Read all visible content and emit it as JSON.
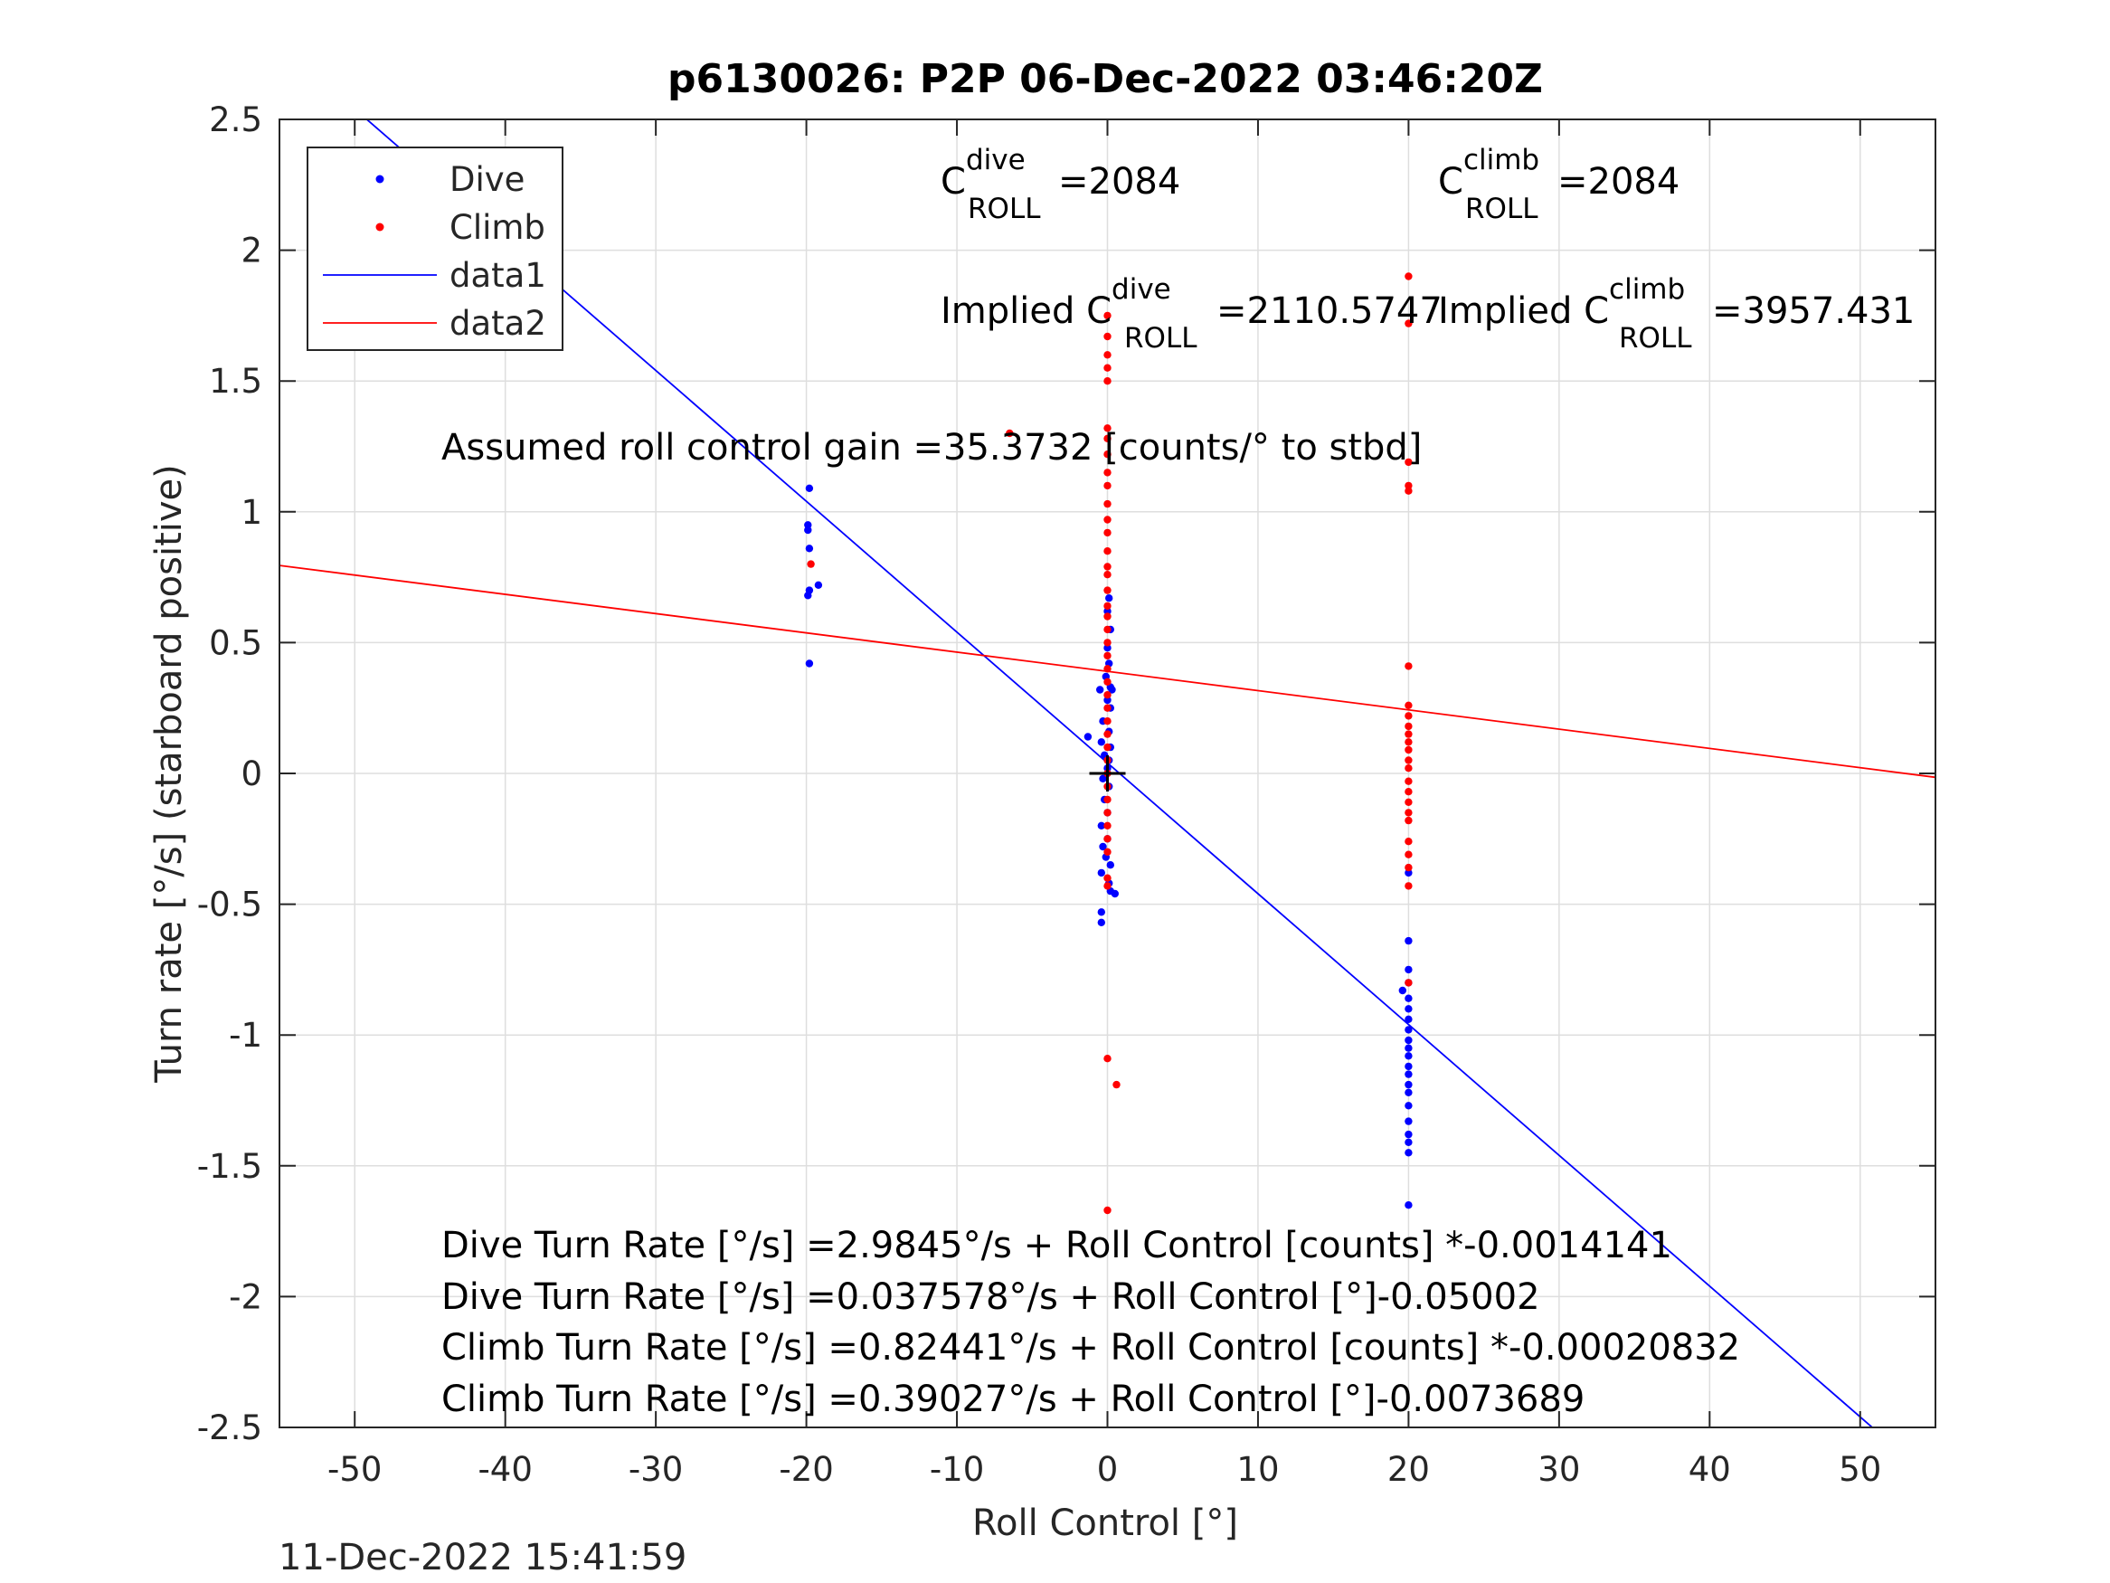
{
  "chart_data": {
    "type": "scatter",
    "title": "p6130026: P2P 06-Dec-2022 03:46:20Z",
    "xlabel": "Roll Control [°]",
    "ylabel": "Turn rate [°/s] (starboard positive)",
    "xlim": [
      -55,
      55
    ],
    "ylim": [
      -2.5,
      2.5
    ],
    "x_ticks": [
      -50,
      -40,
      -30,
      -20,
      -10,
      0,
      10,
      20,
      30,
      40,
      50
    ],
    "y_ticks": [
      2.5,
      2,
      1.5,
      1,
      0.5,
      0,
      -0.5,
      -1,
      -1.5,
      -2,
      -2.5
    ],
    "x_tick_labels": [
      "-50",
      "-40",
      "-30",
      "-20",
      "-10",
      "0",
      "10",
      "20",
      "30",
      "40",
      "50"
    ],
    "y_tick_labels": [
      "2.5",
      "2",
      "1.5",
      "1",
      "0.5",
      "0",
      "-0.5",
      "-1",
      "-1.5",
      "-2",
      "-2.5"
    ],
    "grid": true,
    "legend_position": "top-left",
    "legend": [
      {
        "name": "Dive",
        "kind": "marker",
        "color": "#0000ff"
      },
      {
        "name": "Climb",
        "kind": "marker",
        "color": "#ff0000"
      },
      {
        "name": "data1",
        "kind": "line",
        "color": "#0000ff"
      },
      {
        "name": "data2",
        "kind": "line",
        "color": "#ff0000"
      }
    ],
    "series": [
      {
        "name": "Dive",
        "kind": "scatter",
        "color": "#0000ff",
        "points": [
          [
            -19.8,
            1.09
          ],
          [
            -19.9,
            0.95
          ],
          [
            -19.9,
            0.93
          ],
          [
            -19.8,
            0.86
          ],
          [
            -19.2,
            0.72
          ],
          [
            -19.8,
            0.7
          ],
          [
            -19.9,
            0.68
          ],
          [
            -19.8,
            0.42
          ],
          [
            0.1,
            0.67
          ],
          [
            0.0,
            0.62
          ],
          [
            0.2,
            0.55
          ],
          [
            0.0,
            0.48
          ],
          [
            0.1,
            0.42
          ],
          [
            -0.1,
            0.37
          ],
          [
            0.2,
            0.33
          ],
          [
            -0.5,
            0.32
          ],
          [
            0.3,
            0.32
          ],
          [
            0.0,
            0.28
          ],
          [
            0.2,
            0.25
          ],
          [
            -0.3,
            0.2
          ],
          [
            0.1,
            0.16
          ],
          [
            -1.3,
            0.14
          ],
          [
            -0.4,
            0.12
          ],
          [
            0.2,
            0.1
          ],
          [
            -0.2,
            0.07
          ],
          [
            0.1,
            0.05
          ],
          [
            0.0,
            0.02
          ],
          [
            -0.3,
            -0.02
          ],
          [
            0.1,
            -0.05
          ],
          [
            -0.2,
            -0.1
          ],
          [
            0.0,
            -0.15
          ],
          [
            -0.4,
            -0.2
          ],
          [
            0.0,
            -0.25
          ],
          [
            -0.3,
            -0.28
          ],
          [
            -0.1,
            -0.32
          ],
          [
            0.2,
            -0.35
          ],
          [
            -0.4,
            -0.38
          ],
          [
            0.1,
            -0.42
          ],
          [
            0.2,
            -0.45
          ],
          [
            0.5,
            -0.46
          ],
          [
            -0.4,
            -0.53
          ],
          [
            -0.4,
            -0.57
          ],
          [
            20.0,
            -0.38
          ],
          [
            20.0,
            -0.64
          ],
          [
            20.0,
            -0.75
          ],
          [
            20.0,
            -0.8
          ],
          [
            19.6,
            -0.83
          ],
          [
            20.0,
            -0.86
          ],
          [
            20.0,
            -0.9
          ],
          [
            20.0,
            -0.94
          ],
          [
            20.0,
            -0.98
          ],
          [
            20.0,
            -1.02
          ],
          [
            20.0,
            -1.05
          ],
          [
            20.0,
            -1.08
          ],
          [
            20.0,
            -1.12
          ],
          [
            20.0,
            -1.15
          ],
          [
            20.0,
            -1.19
          ],
          [
            20.0,
            -1.22
          ],
          [
            20.0,
            -1.27
          ],
          [
            20.0,
            -1.33
          ],
          [
            20.0,
            -1.38
          ],
          [
            20.0,
            -1.41
          ],
          [
            20.0,
            -1.45
          ],
          [
            20.0,
            -1.65
          ]
        ]
      },
      {
        "name": "Climb",
        "kind": "scatter",
        "color": "#ff0000",
        "points": [
          [
            0.0,
            1.75
          ],
          [
            0.0,
            1.67
          ],
          [
            0.0,
            1.6
          ],
          [
            0.0,
            1.55
          ],
          [
            0.0,
            1.5
          ],
          [
            0.0,
            1.32
          ],
          [
            0.0,
            1.28
          ],
          [
            0.0,
            1.22
          ],
          [
            0.0,
            1.15
          ],
          [
            0.0,
            1.1
          ],
          [
            0.0,
            1.03
          ],
          [
            0.0,
            0.97
          ],
          [
            0.0,
            0.92
          ],
          [
            0.0,
            0.85
          ],
          [
            0.0,
            0.79
          ],
          [
            0.0,
            0.76
          ],
          [
            0.0,
            0.7
          ],
          [
            0.0,
            0.64
          ],
          [
            0.0,
            0.6
          ],
          [
            0.0,
            0.55
          ],
          [
            0.0,
            0.5
          ],
          [
            0.0,
            0.45
          ],
          [
            0.0,
            0.4
          ],
          [
            0.0,
            0.35
          ],
          [
            0.0,
            0.3
          ],
          [
            0.0,
            0.25
          ],
          [
            0.0,
            0.2
          ],
          [
            0.0,
            0.15
          ],
          [
            0.0,
            0.1
          ],
          [
            0.0,
            0.05
          ],
          [
            0.0,
            0.0
          ],
          [
            0.0,
            -0.05
          ],
          [
            0.0,
            -0.1
          ],
          [
            0.0,
            -0.15
          ],
          [
            0.0,
            -0.2
          ],
          [
            0.0,
            -0.25
          ],
          [
            0.0,
            -0.3
          ],
          [
            0.0,
            -0.4
          ],
          [
            0.0,
            -0.43
          ],
          [
            0.0,
            -1.09
          ],
          [
            0.6,
            -1.19
          ],
          [
            0.0,
            -1.67
          ],
          [
            -6.5,
            1.3
          ],
          [
            -19.7,
            0.8
          ],
          [
            20.0,
            1.9
          ],
          [
            20.0,
            1.72
          ],
          [
            20.0,
            1.19
          ],
          [
            20.0,
            1.1
          ],
          [
            20.0,
            1.08
          ],
          [
            20.0,
            0.41
          ],
          [
            20.0,
            0.26
          ],
          [
            20.0,
            0.22
          ],
          [
            20.0,
            0.18
          ],
          [
            20.0,
            0.15
          ],
          [
            20.0,
            0.12
          ],
          [
            20.0,
            0.09
          ],
          [
            20.0,
            0.05
          ],
          [
            20.0,
            0.02
          ],
          [
            20.0,
            -0.03
          ],
          [
            20.0,
            -0.07
          ],
          [
            20.0,
            -0.11
          ],
          [
            20.0,
            -0.15
          ],
          [
            20.0,
            -0.18
          ],
          [
            20.0,
            -0.26
          ],
          [
            20.0,
            -0.31
          ],
          [
            20.0,
            -0.36
          ],
          [
            20.0,
            -0.43
          ],
          [
            20.0,
            -0.8
          ]
        ]
      },
      {
        "name": "data1",
        "kind": "line",
        "color": "#0000ff",
        "points": [
          [
            -55,
            2.79
          ],
          [
            55,
            -2.71
          ]
        ]
      },
      {
        "name": "data2",
        "kind": "line",
        "color": "#ff0000",
        "points": [
          [
            -55,
            0.795
          ],
          [
            55,
            -0.015
          ]
        ]
      }
    ],
    "annotations": {
      "c_dive_label": "C",
      "c_dive_sup": "dive",
      "c_dive_sub": "ROLL",
      "c_dive_value": "=2084",
      "c_climb_label": "C",
      "c_climb_sup": "climb",
      "c_climb_sub": "ROLL",
      "c_climb_value": "=2084",
      "implied_dive_label": "Implied C",
      "implied_dive_sup": "dive",
      "implied_dive_sub": "ROLL",
      "implied_dive_value": "=2110.5747",
      "implied_climb_label": "Implied C",
      "implied_climb_sup": "climb",
      "implied_climb_sub": "ROLL",
      "implied_climb_value": "=3957.431",
      "gain_text": "Assumed roll control gain =35.3732 [counts/° to stbd]",
      "eq1": "Dive Turn Rate [°/s] =2.9845°/s + Roll Control [counts] *-0.0014141",
      "eq2": "Dive Turn Rate [°/s] =0.037578°/s + Roll Control [°]-0.05002",
      "eq3": "Climb Turn Rate [°/s] =0.82441°/s + Roll Control [counts] *-0.00020832",
      "eq4": "Climb Turn Rate [°/s] =0.39027°/s + Roll Control [°]-0.0073689"
    },
    "center_marker": [
      0,
      0
    ]
  },
  "timestamp": "11-Dec-2022 15:41:59"
}
